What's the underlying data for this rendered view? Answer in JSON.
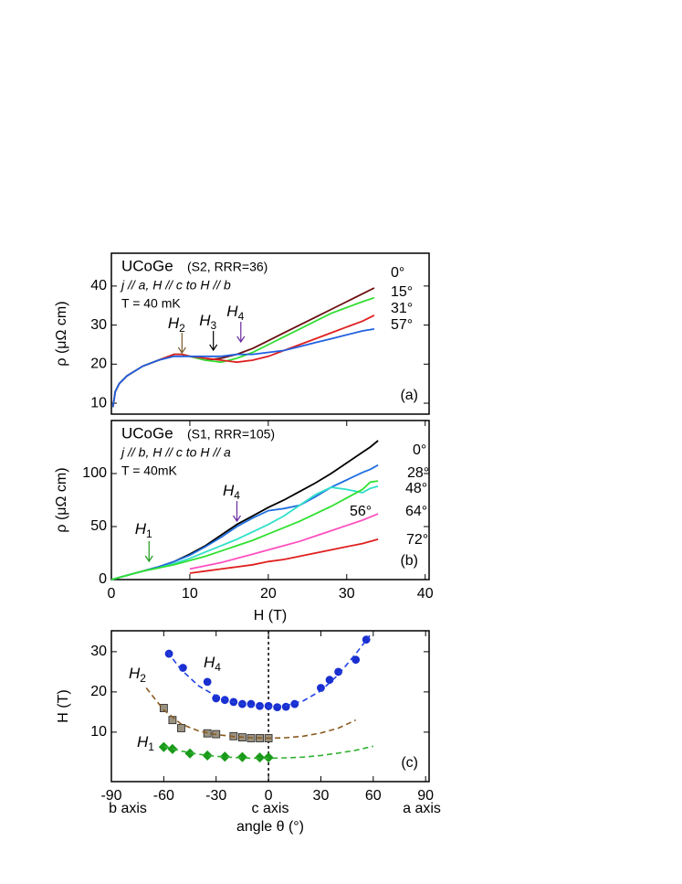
{
  "chart_data": [
    {
      "type": "line",
      "sample": "UCoGe",
      "sample_note": "(S2, RRR=36)",
      "config": "j // a, H // c to H // b",
      "temperature": "T = 40 mK",
      "panel_label": "(a)",
      "y_label": "ρ (μΩ cm)",
      "xlim": [
        0,
        40.5
      ],
      "ylim": [
        7.2,
        48.4
      ],
      "yticks": [
        10,
        20,
        30,
        40
      ],
      "x": [
        0.2,
        0.5,
        1,
        2,
        4,
        6,
        8,
        9,
        10,
        12,
        14,
        16,
        18,
        20,
        22,
        24,
        26,
        28,
        30,
        32,
        33.5
      ],
      "series": [
        {
          "name": "0°",
          "color": "#6b0f0f",
          "values": [
            9,
            13,
            15,
            17,
            19.5,
            21,
            22.5,
            22.5,
            22,
            21,
            21.5,
            22.5,
            24,
            26,
            28,
            30,
            32,
            34,
            36,
            38,
            39.5
          ]
        },
        {
          "name": "15°",
          "color": "#33dd33",
          "values": [
            9,
            13,
            15,
            17,
            19.5,
            21,
            22.5,
            22.5,
            22,
            21,
            20.5,
            21.5,
            23,
            25,
            27,
            29,
            31,
            33,
            34.5,
            36,
            37
          ]
        },
        {
          "name": "31°",
          "color": "#e02020",
          "values": [
            9,
            13,
            15,
            17,
            19.5,
            21,
            22.5,
            22.5,
            22,
            21.5,
            21,
            20.5,
            21,
            22,
            23.5,
            25,
            26.5,
            28,
            29.5,
            31,
            32.5
          ]
        },
        {
          "name": "57°",
          "color": "#2060e0",
          "values": [
            9,
            13,
            15,
            17,
            19.5,
            21,
            22,
            22,
            22,
            22,
            22,
            22.5,
            22.5,
            23,
            23.5,
            24.5,
            25.5,
            26.5,
            27.5,
            28.5,
            29
          ]
        }
      ],
      "annotations": [
        {
          "text": "H",
          "sub": "2",
          "x": 9,
          "color": "#7a5a2a"
        },
        {
          "text": "H",
          "sub": "3",
          "x": 13,
          "color": "#000000"
        },
        {
          "text": "H",
          "sub": "4",
          "x": 16.5,
          "color": "#6a2aa0"
        }
      ]
    },
    {
      "type": "line",
      "sample": "UCoGe",
      "sample_note": "(S1, RRR=105)",
      "config": "j // b, H // c to H // a",
      "temperature": "T =  40mK",
      "panel_label": "(b)",
      "y_label": "ρ (μΩ cm)",
      "x_label": "H (T)",
      "xlim": [
        0,
        40.5
      ],
      "xticks": [
        0,
        10,
        20,
        30,
        40
      ],
      "ylim": [
        0,
        150
      ],
      "yticks": [
        0,
        50,
        100
      ],
      "x": [
        0,
        2,
        4,
        6,
        8,
        10,
        12,
        14,
        16,
        18,
        20,
        22,
        24,
        26,
        28,
        30,
        32,
        33,
        34
      ],
      "series": [
        {
          "name": "0°",
          "color": "#000000",
          "values": [
            0,
            4,
            8,
            12,
            17,
            24,
            32,
            42,
            52,
            60,
            68,
            75,
            83,
            91,
            100,
            110,
            120,
            125,
            131
          ]
        },
        {
          "name": "28°",
          "color": "#1e6fe0",
          "values": [
            0,
            4,
            8,
            12,
            17,
            23,
            31,
            40,
            50,
            58,
            65,
            67,
            70,
            78,
            87,
            94,
            101,
            104,
            108
          ]
        },
        {
          "name": "48°",
          "color": "#30e0c8",
          "values": [
            0,
            4,
            8,
            11,
            15,
            20,
            26,
            32,
            38,
            45,
            52,
            60,
            70,
            80,
            87,
            85,
            82,
            86,
            88
          ]
        },
        {
          "name": "56°",
          "color": "#30e030",
          "values": [
            0,
            4,
            8,
            11,
            14,
            18,
            22,
            27,
            32,
            37,
            43,
            49,
            55,
            62,
            69,
            77,
            85,
            92,
            93
          ]
        },
        {
          "name": "64°",
          "color": "#ff50c0",
          "values": [
            null,
            null,
            null,
            null,
            null,
            10,
            13,
            16,
            20,
            24,
            28,
            32,
            36,
            41,
            46,
            51,
            56,
            59,
            62
          ]
        },
        {
          "name": "72°",
          "color": "#e02020",
          "values": [
            null,
            null,
            null,
            null,
            null,
            6,
            8,
            10,
            12,
            14,
            17,
            19,
            22,
            25,
            28,
            31,
            34,
            36,
            38
          ]
        }
      ],
      "annotations": [
        {
          "text": "H",
          "sub": "1",
          "x": 4.8,
          "color": "#1a9a1a"
        },
        {
          "text": "H",
          "sub": "4",
          "x": 16,
          "color": "#6a2aa0"
        }
      ]
    },
    {
      "type": "scatter",
      "panel_label": "(c)",
      "y_label": "H (T)",
      "x_label": "angle θ (°)",
      "axis_names": [
        "b axis",
        "c axis",
        "a axis"
      ],
      "xlim": [
        -90,
        92
      ],
      "xticks": [
        -90,
        -60,
        -30,
        0,
        30,
        60,
        90
      ],
      "ylim": [
        -2.3,
        35.2
      ],
      "yticks": [
        10,
        20,
        30
      ],
      "series": [
        {
          "name": "H4",
          "marker": "circle",
          "color": "#1a2fd0",
          "x": [
            -57,
            -49,
            -35,
            -30,
            -25,
            -20,
            -15,
            -10,
            -5,
            0,
            5,
            10,
            15,
            30,
            35,
            40,
            50,
            56
          ],
          "values": [
            29.5,
            26,
            22.5,
            18.4,
            18,
            17.5,
            17,
            17,
            16.5,
            16.5,
            16.2,
            16.3,
            17,
            21,
            23,
            25,
            28,
            33
          ]
        },
        {
          "name": "H2",
          "marker": "square",
          "color": "#9a9280",
          "x": [
            -60,
            -55,
            -50,
            -35,
            -30,
            -20,
            -15,
            -10,
            -5,
            0
          ],
          "values": [
            16,
            13,
            11,
            9.7,
            9.5,
            9,
            8.7,
            8.5,
            8.5,
            8.5
          ]
        },
        {
          "name": "H1",
          "marker": "diamond",
          "color": "#1a9a1a",
          "x": [
            -60,
            -55,
            -45,
            -35,
            -25,
            -15,
            -5,
            0
          ],
          "values": [
            6.3,
            5.8,
            4.7,
            4.2,
            3.9,
            3.8,
            3.7,
            3.7
          ]
        },
        {
          "marker": "dashed",
          "color": "#2040e0",
          "x": [
            -58,
            -50,
            -40,
            -30,
            -20,
            -10,
            0,
            10,
            20,
            30,
            40,
            50,
            58
          ],
          "values": [
            30,
            25.5,
            21.5,
            19,
            17.5,
            16.6,
            16.3,
            16.6,
            17.8,
            20.3,
            24.3,
            29.5,
            34
          ]
        },
        {
          "marker": "dashed",
          "color": "#8a5a20",
          "x": [
            -70,
            -60,
            -50,
            -40,
            -30,
            -20,
            -10,
            0,
            10,
            20,
            30,
            40,
            50
          ],
          "values": [
            21,
            15.5,
            12,
            10.3,
            9.4,
            8.9,
            8.6,
            8.5,
            8.6,
            9,
            9.8,
            11,
            13
          ]
        },
        {
          "marker": "dashed",
          "color": "#30b030",
          "x": [
            -60,
            -50,
            -40,
            -30,
            -20,
            -10,
            0,
            10,
            20,
            30,
            40,
            50,
            60
          ],
          "values": [
            6.5,
            5.3,
            4.5,
            4,
            3.7,
            3.5,
            3.5,
            3.6,
            3.8,
            4.2,
            4.8,
            5.5,
            6.5
          ]
        }
      ],
      "annotations": [
        {
          "text": "H",
          "sub": "4",
          "color": "#000000"
        },
        {
          "text": "H",
          "sub": "2",
          "color": "#000000"
        },
        {
          "text": "H",
          "sub": "1",
          "color": "#000000"
        }
      ]
    }
  ]
}
